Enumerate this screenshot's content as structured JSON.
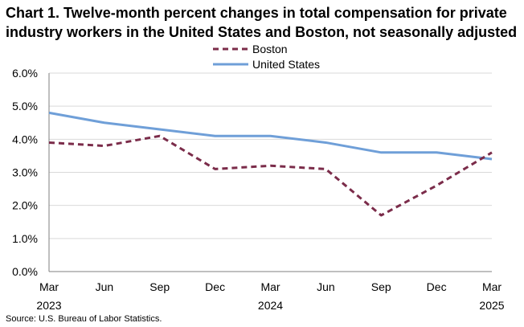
{
  "chart_data": {
    "type": "line",
    "title_line1": "Chart 1. Twelve-month percent changes in total compensation for private",
    "title_line2": "industry workers in the United States and Boston, not seasonally adjusted",
    "categories": [
      "Mar",
      "Jun",
      "Sep",
      "Dec",
      "Mar",
      "Jun",
      "Sep",
      "Dec",
      "Mar"
    ],
    "years": [
      "2023",
      "",
      "",
      "",
      "2024",
      "",
      "",
      "",
      "2025"
    ],
    "series": [
      {
        "name": "Boston",
        "color": "#7b2c4a",
        "style": "dashed",
        "values": [
          3.9,
          3.8,
          4.1,
          3.1,
          3.2,
          3.1,
          1.7,
          2.6,
          3.6
        ]
      },
      {
        "name": "United States",
        "color": "#6f9fd8",
        "style": "solid",
        "values": [
          4.8,
          4.5,
          4.3,
          4.1,
          4.1,
          3.9,
          3.6,
          3.6,
          3.4
        ]
      }
    ],
    "ylim": [
      0,
      6
    ],
    "yticks": [
      0,
      1,
      2,
      3,
      4,
      5,
      6
    ],
    "ytick_labels": [
      "0.0%",
      "1.0%",
      "2.0%",
      "3.0%",
      "4.0%",
      "5.0%",
      "6.0%"
    ],
    "xlabel": "",
    "ylabel": "",
    "grid": "horizontal",
    "legend": "top-center"
  },
  "source": "Source: U.S. Bureau of Labor Statistics."
}
